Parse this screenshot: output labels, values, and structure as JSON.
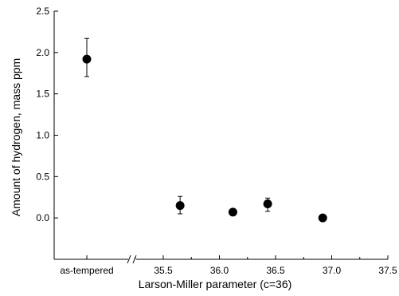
{
  "chart_data": {
    "type": "scatter",
    "title": "",
    "xlabel": "Larson-Miller parameter (c=36)",
    "ylabel": "Amount of hydrogen, mass ppm",
    "x_break": true,
    "x_category_label": "as-tempered",
    "xlim": [
      35.0,
      37.5
    ],
    "x_ticks": [
      "35.5",
      "36.0",
      "36.5",
      "37.0",
      "37.5"
    ],
    "ylim": [
      -0.5,
      2.5
    ],
    "y_ticks": [
      "0.0",
      "0.5",
      "1.0",
      "1.5",
      "2.0",
      "2.5"
    ],
    "grid": false,
    "legend": "none",
    "points": [
      {
        "x": "as-tempered",
        "y": 1.92,
        "err_low": 1.71,
        "err_high": 2.17
      },
      {
        "x": 35.65,
        "y": 0.15,
        "err_low": 0.05,
        "err_high": 0.26
      },
      {
        "x": 36.12,
        "y": 0.07,
        "err_low": null,
        "err_high": null
      },
      {
        "x": 36.43,
        "y": 0.17,
        "err_low": 0.08,
        "err_high": 0.24
      },
      {
        "x": 36.92,
        "y": 0.0,
        "err_low": null,
        "err_high": null
      }
    ],
    "marker_color": "#000000"
  }
}
